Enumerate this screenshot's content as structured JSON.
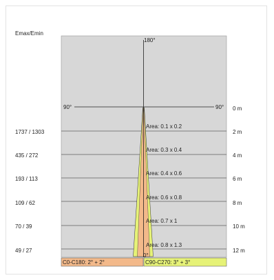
{
  "header": {
    "emax_emin_label": "Emax/Emin"
  },
  "angles": {
    "top": "180°",
    "left": "90°",
    "right": "90°",
    "bottom": "0°"
  },
  "rows": [
    {
      "ratio": "",
      "distance": "0 m",
      "area": ""
    },
    {
      "ratio": "1737 / 1303",
      "distance": "2 m",
      "area": "Area: 0.1 x 0.2"
    },
    {
      "ratio": "435 / 272",
      "distance": "4 m",
      "area": "Area: 0.3 x 0.4"
    },
    {
      "ratio": "193 / 113",
      "distance": "6 m",
      "area": "Area: 0.4 x 0.6"
    },
    {
      "ratio": "109 / 62",
      "distance": "8 m",
      "area": "Area: 0.6 x 0.8"
    },
    {
      "ratio": "70 / 39",
      "distance": "10 m",
      "area": "Area: 0.7 x 1"
    },
    {
      "ratio": "49 / 27",
      "distance": "12 m",
      "area": "Area: 0.8 x 1.3"
    }
  ],
  "legend": {
    "c0_c180": {
      "label": "C0-C180: 2° + 2°",
      "color": "#f3b98a"
    },
    "c90_c270": {
      "label": "C90-C270: 3° + 3°",
      "color": "#e6f277"
    }
  },
  "colors": {
    "plot_bg": "#d7d7d7",
    "beam_outer": "#e6f277",
    "beam_inner": "#f3b98a",
    "axis": "#222222"
  }
}
